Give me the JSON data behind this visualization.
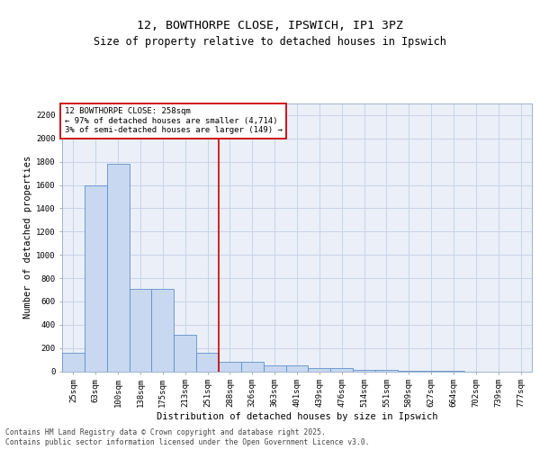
{
  "title_line1": "12, BOWTHORPE CLOSE, IPSWICH, IP1 3PZ",
  "title_line2": "Size of property relative to detached houses in Ipswich",
  "xlabel": "Distribution of detached houses by size in Ipswich",
  "ylabel": "Number of detached properties",
  "categories": [
    "25sqm",
    "63sqm",
    "100sqm",
    "138sqm",
    "175sqm",
    "213sqm",
    "251sqm",
    "288sqm",
    "326sqm",
    "363sqm",
    "401sqm",
    "439sqm",
    "476sqm",
    "514sqm",
    "551sqm",
    "589sqm",
    "627sqm",
    "664sqm",
    "702sqm",
    "739sqm",
    "777sqm"
  ],
  "values": [
    155,
    1600,
    1780,
    710,
    710,
    315,
    160,
    85,
    85,
    50,
    50,
    25,
    25,
    15,
    10,
    5,
    2,
    1,
    0,
    0,
    0
  ],
  "bar_color": "#c8d8f0",
  "bar_edge_color": "#6090c8",
  "vline_color": "#cc0000",
  "vline_x": 6.5,
  "annotation_box_text": "12 BOWTHORPE CLOSE: 258sqm\n← 97% of detached houses are smaller (4,714)\n3% of semi-detached houses are larger (149) →",
  "annotation_box_edge_color": "#cc0000",
  "annotation_text_fontsize": 6.5,
  "ylim": [
    0,
    2300
  ],
  "yticks": [
    0,
    200,
    400,
    600,
    800,
    1000,
    1200,
    1400,
    1600,
    1800,
    2000,
    2200
  ],
  "grid_color": "#c8d4e8",
  "bg_color": "#eaeff8",
  "footer_line1": "Contains HM Land Registry data © Crown copyright and database right 2025.",
  "footer_line2": "Contains public sector information licensed under the Open Government Licence v3.0.",
  "title_fontsize": 9.5,
  "subtitle_fontsize": 8.5,
  "axis_label_fontsize": 7.5,
  "tick_fontsize": 6.5,
  "footer_fontsize": 5.8
}
